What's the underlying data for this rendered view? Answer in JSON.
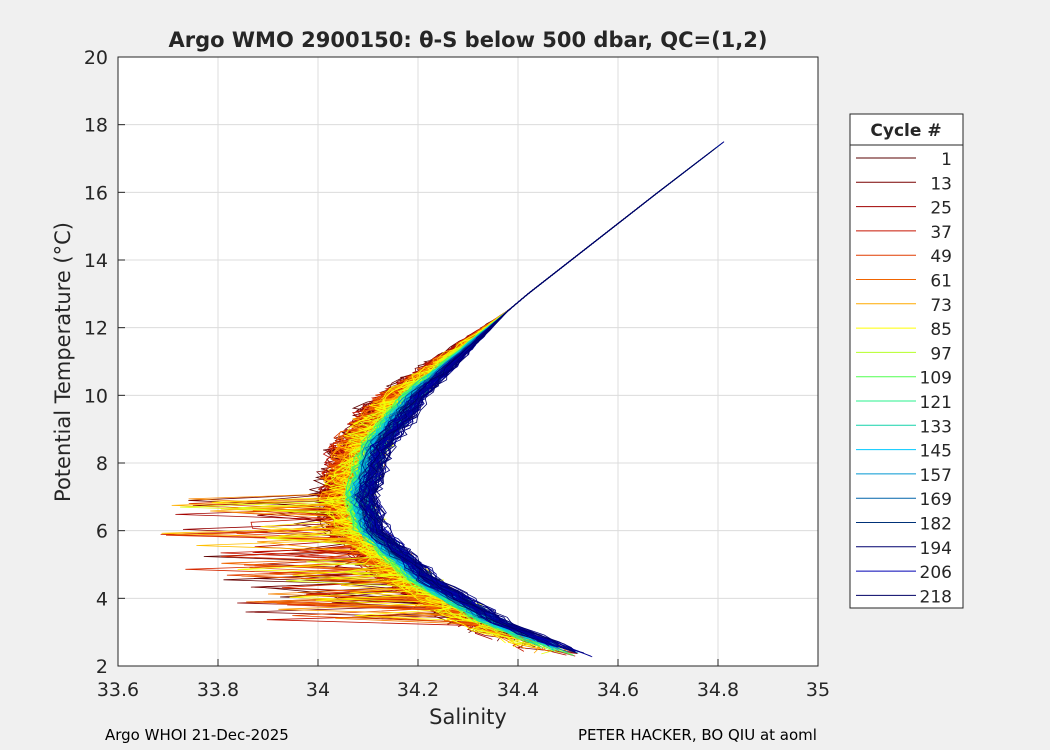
{
  "chart_data": {
    "type": "line",
    "title": "Argo WMO 2900150: θ-S below 500 dbar,  QC=(1,2)",
    "xlabel": "Salinity",
    "ylabel": "Potential Temperature (°C)",
    "xlim": [
      33.6,
      35.0
    ],
    "ylim": [
      2,
      20
    ],
    "xticks": [
      33.6,
      33.8,
      34.0,
      34.2,
      34.4,
      34.6,
      34.8,
      35.0
    ],
    "xtick_labels": [
      "33.6",
      "33.8",
      "34",
      "34.2",
      "34.4",
      "34.6",
      "34.8",
      "35"
    ],
    "yticks": [
      2,
      4,
      6,
      8,
      10,
      12,
      14,
      16,
      18,
      20
    ],
    "ytick_labels": [
      "2",
      "4",
      "6",
      "8",
      "10",
      "12",
      "14",
      "16",
      "18",
      "20"
    ],
    "grid": true,
    "legend": {
      "title": "Cycle #",
      "placement": "right-outside",
      "entries": [
        {
          "label": "1",
          "color": "#5a0000"
        },
        {
          "label": "13",
          "color": "#780000"
        },
        {
          "label": "25",
          "color": "#a00000"
        },
        {
          "label": "37",
          "color": "#c81400"
        },
        {
          "label": "49",
          "color": "#e03c00"
        },
        {
          "label": "61",
          "color": "#f06400"
        },
        {
          "label": "73",
          "color": "#ffaa00"
        },
        {
          "label": "85",
          "color": "#ffff00"
        },
        {
          "label": "97",
          "color": "#b4ff28"
        },
        {
          "label": "109",
          "color": "#50ff50"
        },
        {
          "label": "121",
          "color": "#28f08c"
        },
        {
          "label": "133",
          "color": "#14d2aa"
        },
        {
          "label": "145",
          "color": "#00c8ff"
        },
        {
          "label": "157",
          "color": "#0096d2"
        },
        {
          "label": "169",
          "color": "#0064aa"
        },
        {
          "label": "182",
          "color": "#003278"
        },
        {
          "label": "194",
          "color": "#00006e"
        },
        {
          "label": "206",
          "color": "#0000b4"
        },
        {
          "label": "218",
          "color": "#000064"
        }
      ]
    },
    "representative_profile": {
      "salinity": [
        34.87,
        34.83,
        34.68,
        34.55,
        34.42,
        34.3,
        34.18,
        34.1,
        34.07,
        34.09,
        34.2,
        34.35,
        34.52
      ],
      "theta": [
        18.0,
        17.7,
        16.0,
        14.5,
        13.0,
        11.5,
        10.0,
        8.5,
        7.0,
        6.0,
        4.5,
        3.2,
        2.2
      ]
    }
  },
  "footer": {
    "left": "Argo WHOI 21-Dec-2025",
    "right": "PETER HACKER, BO QIU at aoml"
  }
}
